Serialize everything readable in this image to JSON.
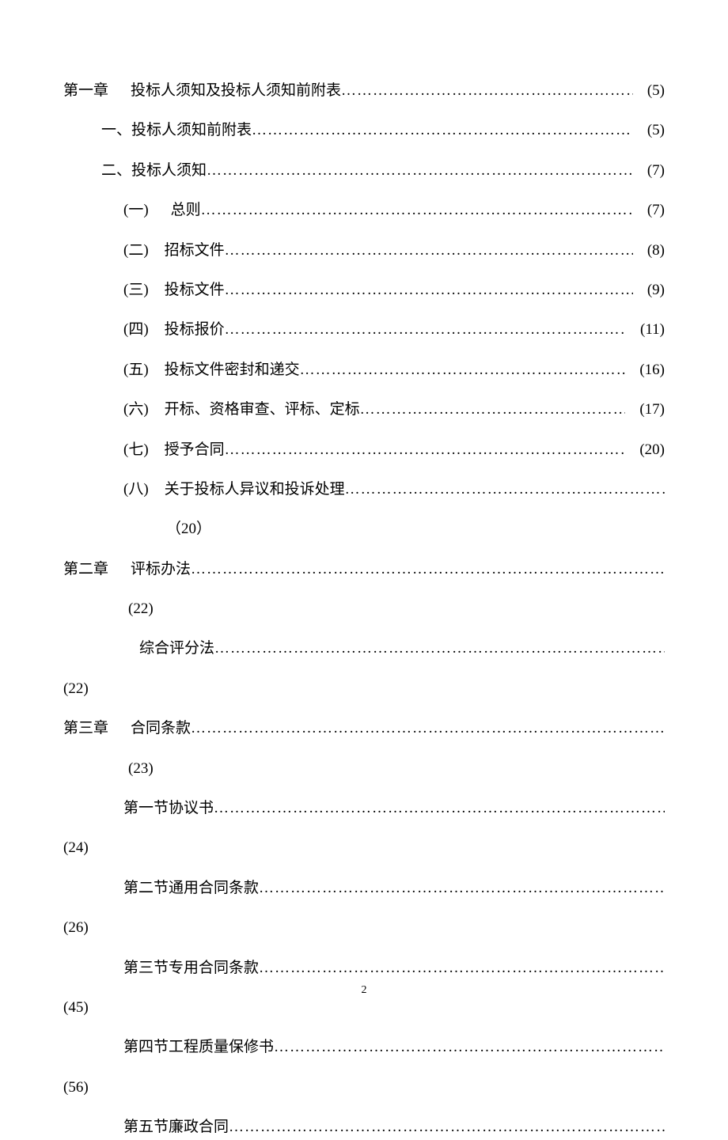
{
  "page_footer_number": "2",
  "dots_fill": "………………………………………………………………………………………………………………………………………………",
  "toc": [
    {
      "indent": "indent-0",
      "prefix": "第一章",
      "gap": "prefix-gap-wide",
      "label": "投标人须知及投标人须知前附表",
      "hasDots": true,
      "page": "(5)",
      "wrap": false
    },
    {
      "indent": "indent-1",
      "prefix": "一、",
      "gap": null,
      "label": "投标人须知前附表",
      "hasDots": true,
      "page": "(5)",
      "wrap": false
    },
    {
      "indent": "indent-1",
      "prefix": "二、",
      "gap": null,
      "label": "投标人须知",
      "hasDots": true,
      "page": "(7)",
      "wrap": false
    },
    {
      "indent": "indent-2",
      "prefix": "(一)",
      "gap": "prefix-gap-wide",
      "label": "总则",
      "hasDots": true,
      "page": "(7)",
      "wrap": false
    },
    {
      "indent": "indent-2",
      "prefix": "(二)",
      "gap": "prefix-gap",
      "label": "招标文件",
      "hasDots": true,
      "page": "(8)",
      "wrap": false
    },
    {
      "indent": "indent-2",
      "prefix": "(三)",
      "gap": "prefix-gap",
      "label": "投标文件",
      "hasDots": true,
      "page": "(9)",
      "wrap": false
    },
    {
      "indent": "indent-2",
      "prefix": "(四)",
      "gap": "prefix-gap",
      "label": "投标报价",
      "hasDots": true,
      "page": "(11)",
      "wrap": false
    },
    {
      "indent": "indent-2",
      "prefix": "(五)",
      "gap": "prefix-gap",
      "label": "投标文件密封和递交",
      "hasDots": true,
      "page": "(16)",
      "wrap": false
    },
    {
      "indent": "indent-2",
      "prefix": "(六)",
      "gap": "prefix-gap",
      "label": "开标、资格审查、评标、定标",
      "hasDots": true,
      "page": "(17)",
      "wrap": false
    },
    {
      "indent": "indent-2",
      "prefix": "(七)",
      "gap": "prefix-gap",
      "label": "授予合同",
      "hasDots": true,
      "page": "(20)",
      "wrap": false
    },
    {
      "indent": "indent-2",
      "prefix": "(八)",
      "gap": "prefix-gap",
      "label": "关于投标人异议和投诉处理",
      "hasDots": true,
      "page": "（20）",
      "wrap": true,
      "wrapClass": "wrapped-page"
    },
    {
      "indent": "indent-0",
      "prefix": "第二章",
      "gap": "prefix-gap-wide",
      "label": "评标办法",
      "hasDots": true,
      "page": "(22)",
      "wrap": true,
      "wrapClass": "wrapped-page-1"
    },
    {
      "indent": "indent-2",
      "prefix": "",
      "gap": "prefix-gap",
      "label": "综合评分法",
      "hasDots": true,
      "page": "(22)",
      "wrap": true,
      "wrapClass": "wrapped-page-left"
    },
    {
      "indent": "indent-0",
      "prefix": "第三章",
      "gap": "prefix-gap-wide",
      "label": "合同条款",
      "hasDots": true,
      "page": "(23)",
      "wrap": true,
      "wrapClass": "wrapped-page-1"
    },
    {
      "indent": "indent-2",
      "prefix": "第一节",
      "gap": null,
      "label": " 协议书 ",
      "hasDots": true,
      "page": "(24)",
      "wrap": true,
      "wrapClass": "wrapped-page-left"
    },
    {
      "indent": "indent-2",
      "prefix": "第二节",
      "gap": null,
      "label": " 通用合同条款 ",
      "hasDots": true,
      "page": "(26)",
      "wrap": true,
      "wrapClass": "wrapped-page-left"
    },
    {
      "indent": "indent-2",
      "prefix": "第三节",
      "gap": null,
      "label": " 专用合同条款 ",
      "hasDots": true,
      "page": "(45)",
      "wrap": true,
      "wrapClass": "wrapped-page-left"
    },
    {
      "indent": "indent-2",
      "prefix": "第四节",
      "gap": null,
      "label": " 工程质量保修书",
      "hasDots": true,
      "page": "(56)",
      "wrap": true,
      "wrapClass": "wrapped-page-left"
    },
    {
      "indent": "indent-2",
      "prefix": "第五节",
      "gap": null,
      "label": " 廉政合同",
      "hasDots": true,
      "page": "",
      "wrap": false
    }
  ]
}
